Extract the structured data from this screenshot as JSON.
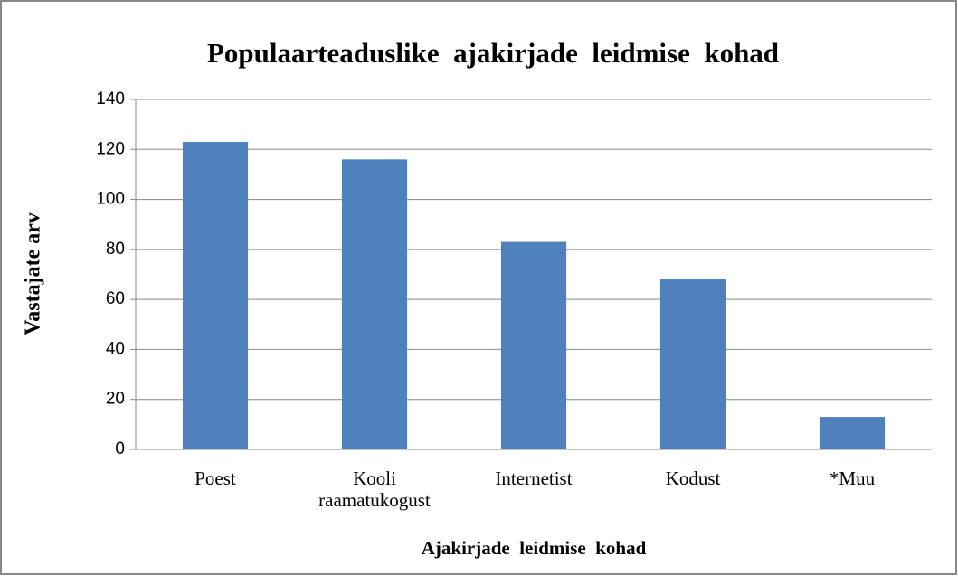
{
  "chart_data": {
    "type": "bar",
    "title": "Populaarteaduslike  ajakirjade  leidmise  kohad",
    "x_label": "Ajakirjade  leidmise  kohad",
    "y_label": "Vastajate arv",
    "categories": [
      "Poest",
      "Kooli raamatukogust",
      "Internetist",
      "Kodust",
      "*Muu"
    ],
    "values": [
      123,
      116,
      83,
      68,
      13
    ],
    "color": "#4f81bd",
    "ylim": [
      0,
      140
    ],
    "yticks": [
      0,
      20,
      40,
      60,
      80,
      100,
      120,
      140
    ],
    "grid": true
  }
}
